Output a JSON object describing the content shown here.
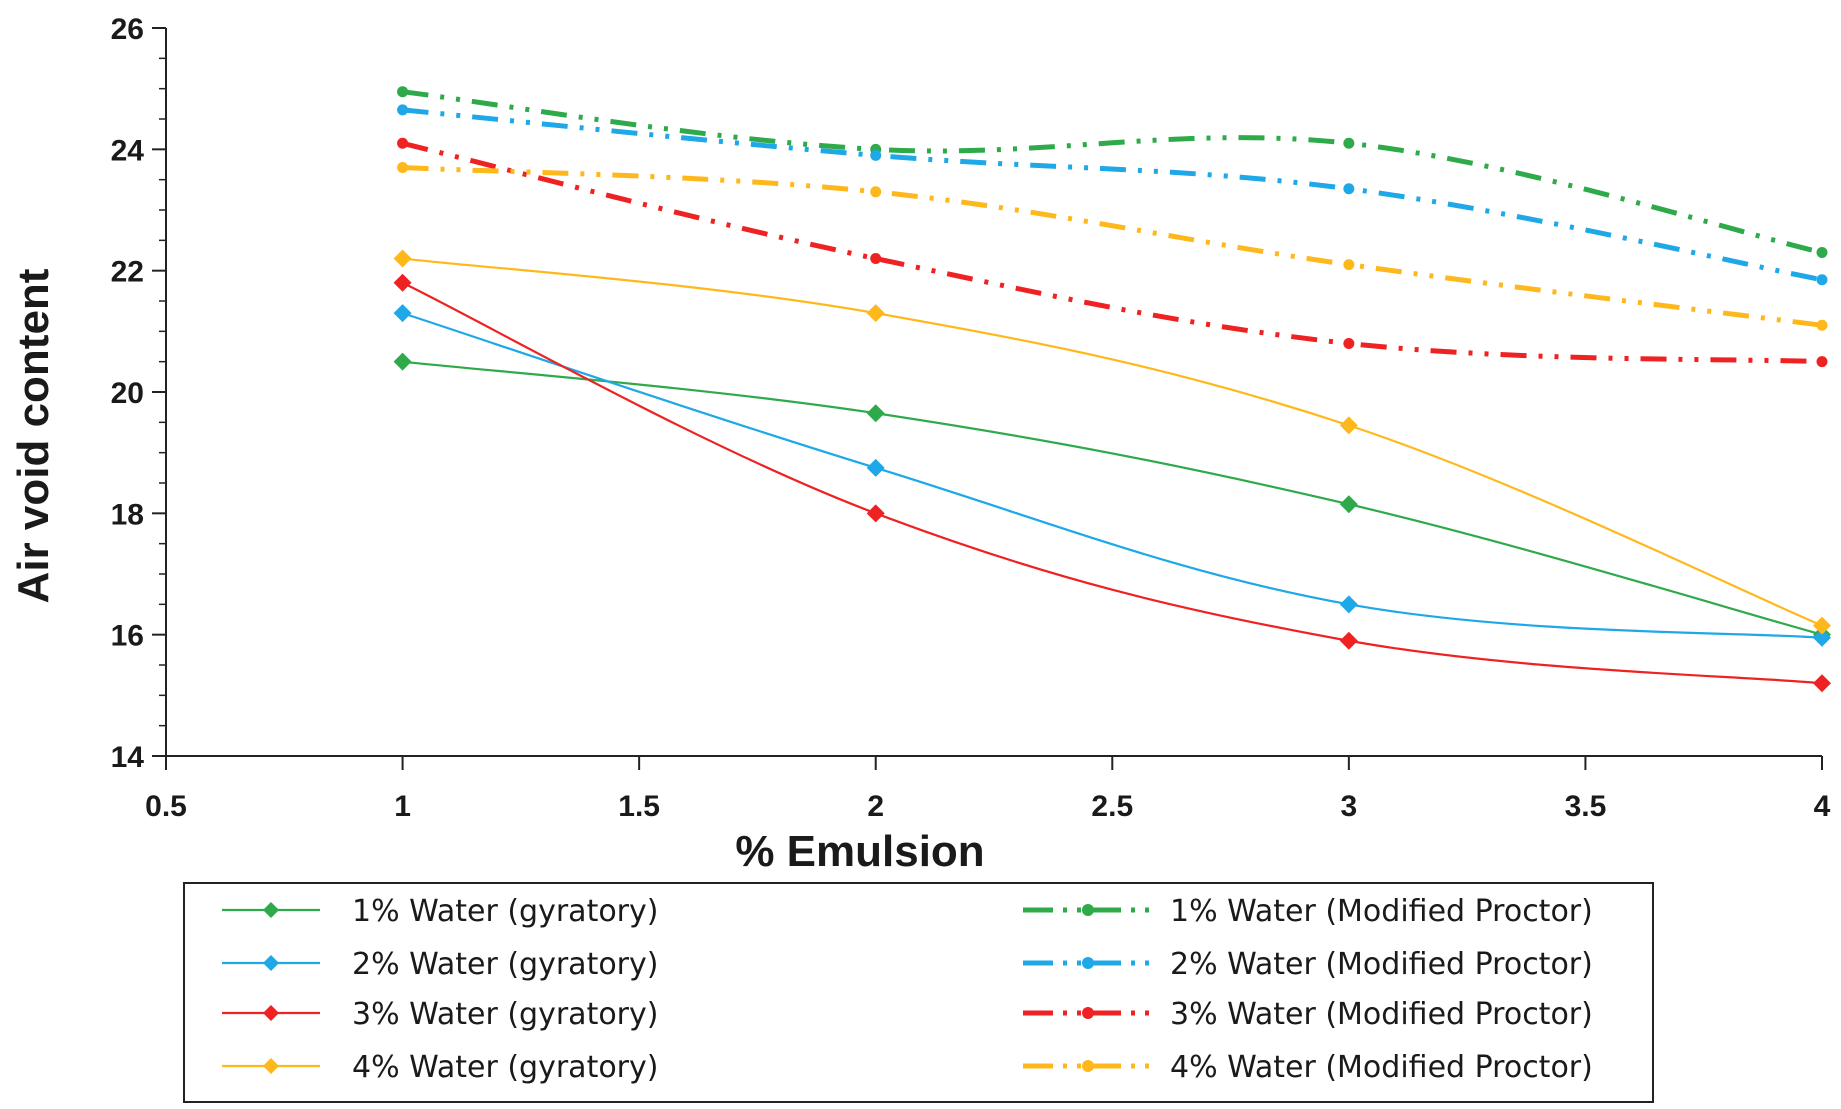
{
  "chart_data": {
    "type": "line",
    "title": "",
    "xlabel": "% Emulsion",
    "ylabel": "Air void content",
    "xlim": [
      0.5,
      4
    ],
    "ylim": [
      14,
      26
    ],
    "x_ticks": [
      0.5,
      1,
      1.5,
      2,
      2.5,
      3,
      3.5,
      4
    ],
    "x_tick_labels": [
      "0.5",
      "1",
      "1.5",
      "2",
      "2.5",
      "3",
      "3.5",
      "4"
    ],
    "y_ticks": [
      14,
      16,
      18,
      20,
      22,
      24,
      26
    ],
    "y_tick_labels": [
      "14",
      "16",
      "18",
      "20",
      "22",
      "24",
      "26"
    ],
    "grid": false,
    "legend_position": "bottom",
    "x": [
      1,
      2,
      3,
      4
    ],
    "series": [
      {
        "name": "1% Water (gyratory)",
        "values": [
          20.5,
          19.65,
          18.15,
          16.0
        ],
        "color": "#2EAA4A",
        "style": "solid",
        "marker": "diamond"
      },
      {
        "name": "2% Water (gyratory)",
        "values": [
          21.3,
          18.75,
          16.5,
          15.95
        ],
        "color": "#1EA8E8",
        "style": "solid",
        "marker": "diamond"
      },
      {
        "name": "3% Water (gyratory)",
        "values": [
          21.8,
          18.0,
          15.9,
          15.2
        ],
        "color": "#EE2222",
        "style": "solid",
        "marker": "diamond"
      },
      {
        "name": "4% Water (gyratory)",
        "values": [
          22.2,
          21.3,
          19.45,
          16.15
        ],
        "color": "#FFB81C",
        "style": "solid",
        "marker": "diamond"
      },
      {
        "name": "1% Water (Modified Proctor)",
        "values": [
          24.95,
          24.0,
          24.1,
          22.3
        ],
        "color": "#2EAA4A",
        "style": "dash-dot-dot",
        "marker": "circle"
      },
      {
        "name": "2% Water (Modified Proctor)",
        "values": [
          24.65,
          23.9,
          23.35,
          21.85
        ],
        "color": "#1EA8E8",
        "style": "dash-dot-dot",
        "marker": "circle"
      },
      {
        "name": "3% Water (Modified Proctor)",
        "values": [
          24.1,
          22.2,
          20.8,
          20.5
        ],
        "color": "#EE2222",
        "style": "dash-dot-dot",
        "marker": "circle"
      },
      {
        "name": "4% Water (Modified Proctor)",
        "values": [
          23.7,
          23.3,
          22.1,
          21.1
        ],
        "color": "#FFB81C",
        "style": "dash-dot-dot",
        "marker": "circle"
      }
    ]
  }
}
